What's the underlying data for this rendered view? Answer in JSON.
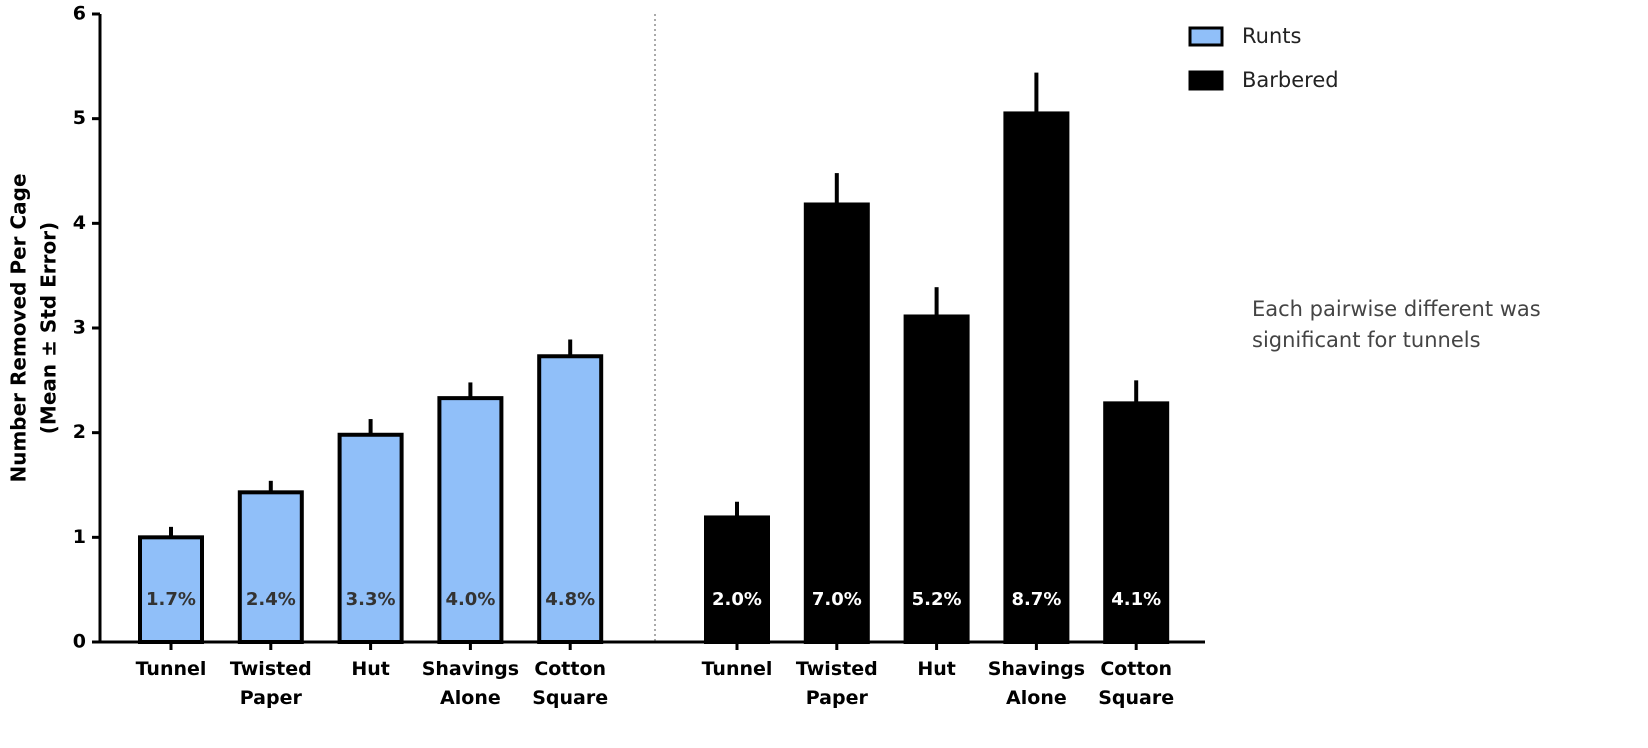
{
  "chart_data": {
    "type": "bar",
    "ylabel": [
      "Number Removed Per Cage",
      "(Mean ± Std Error)"
    ],
    "categories": [
      "Tunnel",
      "Twisted Paper",
      "Hut",
      "Shavings Alone",
      "Cotton Square"
    ],
    "series": [
      {
        "name": "Runts",
        "color": "#90bff9",
        "values": [
          1.0,
          1.43,
          1.98,
          2.33,
          2.73
        ],
        "errors": [
          0.1,
          0.11,
          0.15,
          0.15,
          0.16
        ],
        "bar_labels": [
          "1.7%",
          "2.4%",
          "3.3%",
          "4.0%",
          "4.8%"
        ]
      },
      {
        "name": "Barbered",
        "color": "#000000",
        "values": [
          1.19,
          4.18,
          3.11,
          5.05,
          2.28
        ],
        "errors": [
          0.15,
          0.3,
          0.28,
          0.39,
          0.22
        ],
        "bar_labels": [
          "2.0%",
          "7.0%",
          "5.2%",
          "8.7%",
          "4.1%"
        ]
      }
    ],
    "ylim": [
      0,
      6
    ],
    "yticks": [
      0,
      1,
      2,
      3,
      4,
      5,
      6
    ],
    "annotation": "Each pairwise different was significant for tunnels"
  }
}
